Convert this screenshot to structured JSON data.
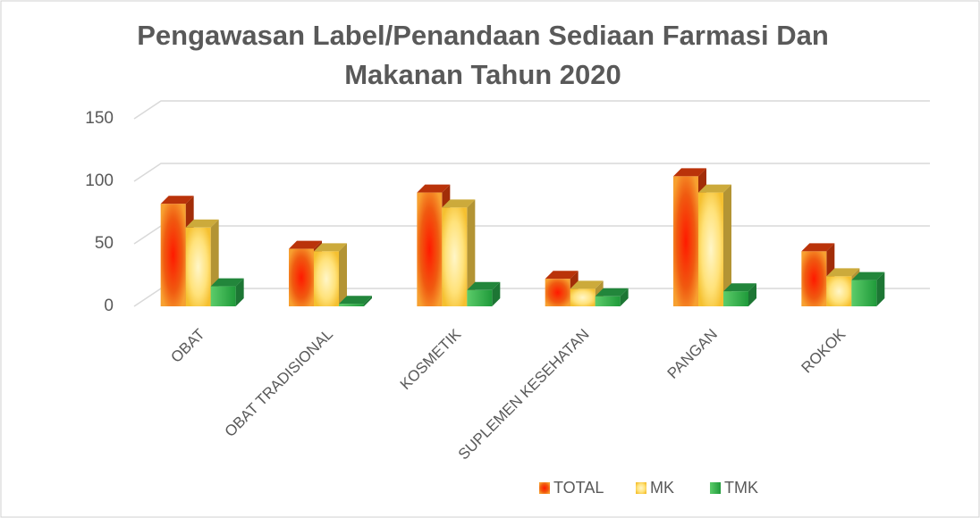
{
  "chart_data": {
    "type": "bar3d",
    "title": [
      "Pengawasan Label/Penandaan Sediaan Farmasi Dan",
      "Makanan Tahun 2020"
    ],
    "categories": [
      "OBAT",
      "OBAT TRADISIONAL",
      "KOSMETIK",
      "SUPLEMEN KESEHATAN",
      "PANGAN",
      "ROKOK"
    ],
    "series": [
      {
        "name": "TOTAL",
        "color": "#e8400c",
        "values": [
          82,
          46,
          91,
          22,
          104,
          44
        ]
      },
      {
        "name": "MK",
        "color": "#ffd44a",
        "values": [
          63,
          44,
          79,
          14,
          91,
          24
        ]
      },
      {
        "name": "TMK",
        "color": "#2aa84a",
        "values": [
          16,
          2,
          13,
          8,
          12,
          21
        ]
      }
    ],
    "ylim": [
      0,
      150
    ],
    "yticks": [
      0,
      50,
      100,
      150
    ],
    "grid": true,
    "legend": "bottom"
  }
}
